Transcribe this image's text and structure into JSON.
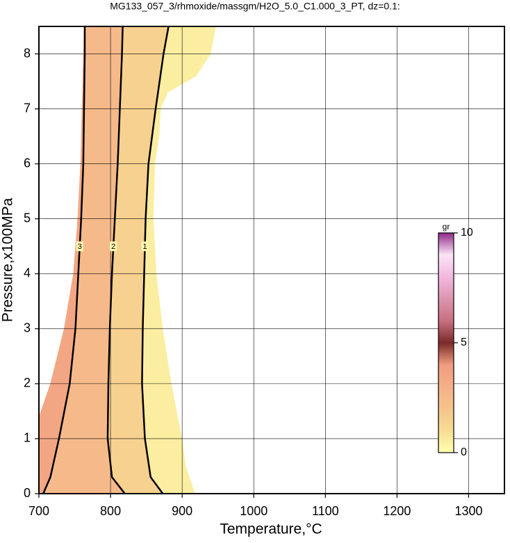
{
  "chart_data": {
    "type": "contour",
    "title": "MG133_057_3/rhmoxide/massgm/H2O_5.0_C1.000_3_PT, dz=0.1:",
    "x_label": "Temperature,°C",
    "y_label": "Pressure,x100MPa",
    "xlim": [
      700,
      1350
    ],
    "ylim": [
      0,
      8.5
    ],
    "xticks": [
      700,
      800,
      900,
      1000,
      1100,
      1200,
      1300
    ],
    "yticks": [
      0,
      1,
      2,
      3,
      4,
      5,
      6,
      7,
      8
    ],
    "grid": true,
    "colorbar": {
      "label": "gr",
      "clim": [
        0,
        10
      ],
      "ticks": [
        0,
        5,
        10
      ],
      "colormap": [
        [
          0,
          "#ffffb0"
        ],
        [
          1,
          "#f7dd92"
        ],
        [
          2,
          "#f6c48c"
        ],
        [
          3,
          "#f5b088"
        ],
        [
          4,
          "#f09c80"
        ],
        [
          5,
          "#7a2a2a"
        ],
        [
          6,
          "#c87080"
        ],
        [
          8,
          "#f2b8e0"
        ],
        [
          9,
          "#fbe4f6"
        ],
        [
          10,
          "#902888"
        ]
      ]
    },
    "domain": {
      "x": [
        918,
        905,
        900,
        885,
        873,
        864,
        860,
        862,
        868,
        870,
        880,
        920,
        940,
        947,
        763,
        760,
        758,
        754,
        748,
        735,
        716,
        700,
        700
      ],
      "y": [
        0,
        0.5,
        1,
        2,
        3,
        4,
        5,
        6,
        6.5,
        7,
        7.3,
        7.6,
        8,
        8.5,
        8.5,
        7,
        6,
        5,
        4,
        3,
        2,
        1.4,
        0
      ]
    },
    "contours": [
      {
        "level": 1,
        "x": [
          873,
          856,
          848,
          844,
          845,
          847,
          849,
          853,
          863,
          874,
          881
        ],
        "y": [
          0,
          0.3,
          1,
          2,
          3,
          4,
          5,
          6,
          7,
          8,
          8.5
        ]
      },
      {
        "level": 2,
        "x": [
          820,
          802,
          796,
          797,
          799,
          802,
          806,
          810,
          813,
          816,
          817
        ],
        "y": [
          0,
          0.3,
          1,
          2,
          3,
          4,
          5,
          6,
          7,
          8,
          8.5
        ]
      },
      {
        "level": 3,
        "x": [
          706,
          716,
          728,
          743,
          751,
          755,
          759,
          762,
          763,
          764,
          764
        ],
        "y": [
          0,
          0.3,
          1,
          2,
          3,
          4,
          5,
          6,
          7,
          8,
          8.5
        ]
      }
    ]
  }
}
